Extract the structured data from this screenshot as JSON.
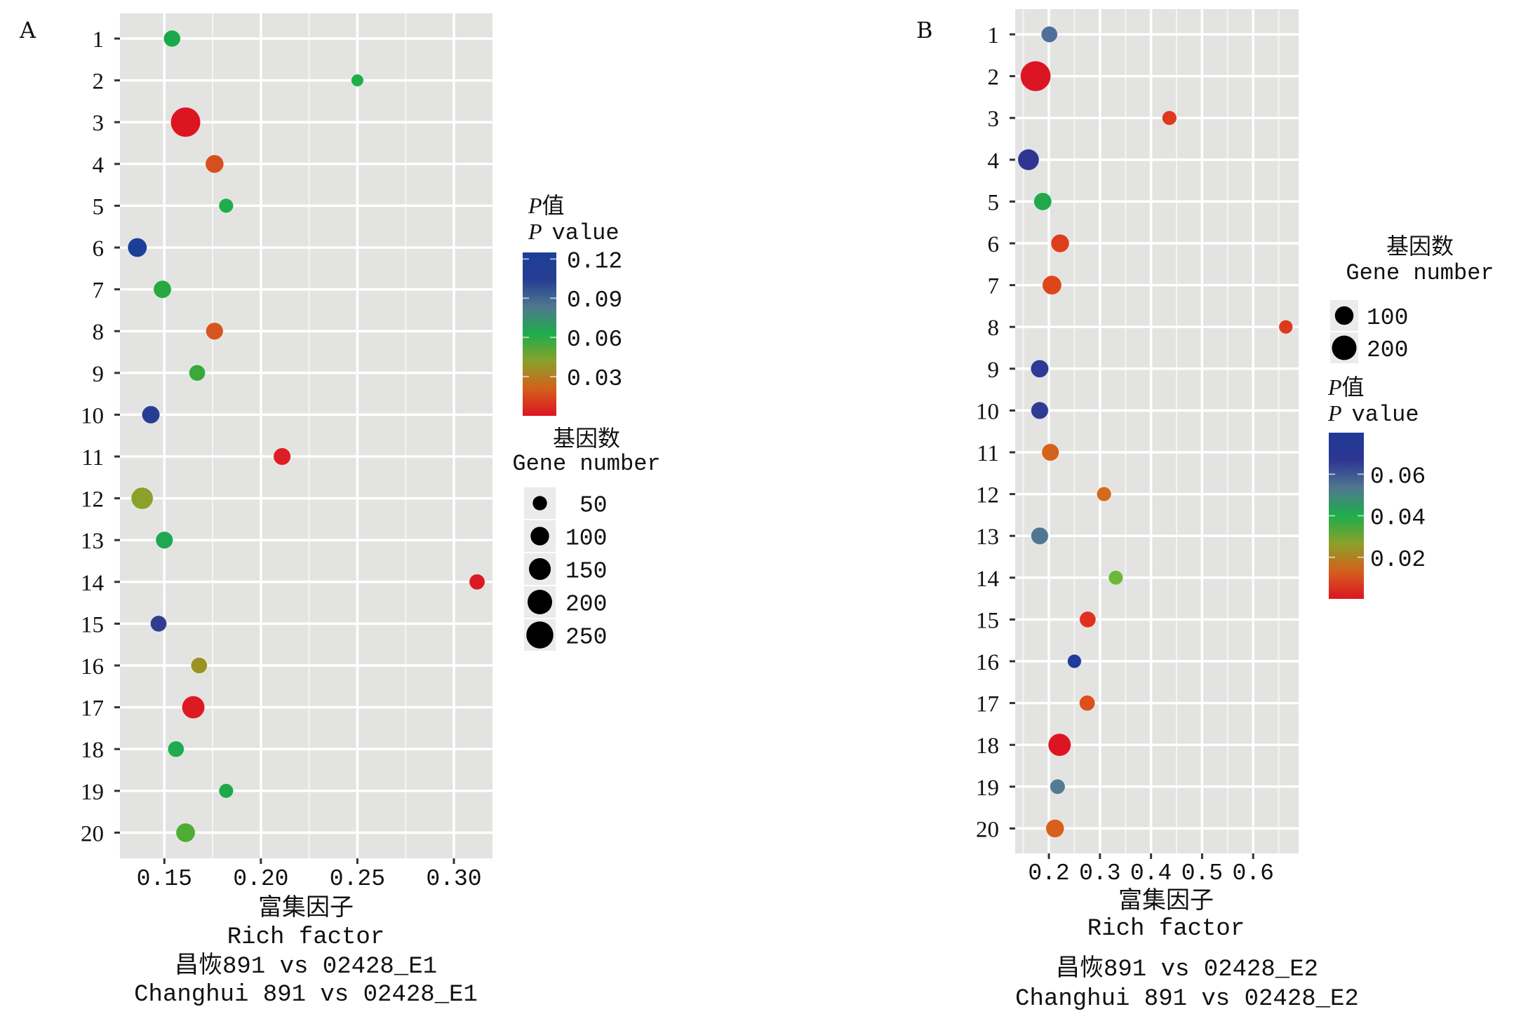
{
  "chart_data": [
    {
      "type": "scatter",
      "panel_label": "A",
      "title": "",
      "xlabel_cn": "富集因子",
      "xlabel": "Rich factor",
      "caption_cn": "昌恢891 vs 02428_E1",
      "caption": "Changhui 891 vs 02428_E1",
      "xlim": [
        0.127,
        0.32
      ],
      "x_ticks": [
        0.15,
        0.2,
        0.25,
        0.3
      ],
      "x_tick_labels": [
        "0.15",
        "0.20",
        "0.25",
        "0.30"
      ],
      "x_minor": [
        0.175,
        0.225,
        0.275
      ],
      "categories": [
        "1",
        "2",
        "3",
        "4",
        "5",
        "6",
        "7",
        "8",
        "9",
        "10",
        "11",
        "12",
        "13",
        "14",
        "15",
        "16",
        "17",
        "18",
        "19",
        "20"
      ],
      "grid": true,
      "points": [
        {
          "term": "1",
          "rich_factor": 0.154,
          "gene_number": 60,
          "color": "#1aa84a"
        },
        {
          "term": "2",
          "rich_factor": 0.25,
          "gene_number": 25,
          "color": "#1fae4a"
        },
        {
          "term": "3",
          "rich_factor": 0.161,
          "gene_number": 250,
          "color": "#dc1522"
        },
        {
          "term": "4",
          "rich_factor": 0.176,
          "gene_number": 75,
          "color": "#d6501e"
        },
        {
          "term": "5",
          "rich_factor": 0.182,
          "gene_number": 40,
          "color": "#1fad4c"
        },
        {
          "term": "6",
          "rich_factor": 0.136,
          "gene_number": 85,
          "color": "#1c3f96"
        },
        {
          "term": "7",
          "rich_factor": 0.149,
          "gene_number": 70,
          "color": "#27a840"
        },
        {
          "term": "8",
          "rich_factor": 0.176,
          "gene_number": 65,
          "color": "#d6541f"
        },
        {
          "term": "9",
          "rich_factor": 0.167,
          "gene_number": 55,
          "color": "#3aa83a"
        },
        {
          "term": "10",
          "rich_factor": 0.143,
          "gene_number": 70,
          "color": "#273d93"
        },
        {
          "term": "11",
          "rich_factor": 0.211,
          "gene_number": 65,
          "color": "#dc1f24"
        },
        {
          "term": "12",
          "rich_factor": 0.1385,
          "gene_number": 120,
          "color": "#8aa12a"
        },
        {
          "term": "13",
          "rich_factor": 0.15,
          "gene_number": 65,
          "color": "#20a850"
        },
        {
          "term": "14",
          "rich_factor": 0.312,
          "gene_number": 50,
          "color": "#dc1a24"
        },
        {
          "term": "15",
          "rich_factor": 0.147,
          "gene_number": 55,
          "color": "#2f3d91"
        },
        {
          "term": "16",
          "rich_factor": 0.168,
          "gene_number": 55,
          "color": "#9a9324"
        },
        {
          "term": "17",
          "rich_factor": 0.165,
          "gene_number": 130,
          "color": "#dc1a22"
        },
        {
          "term": "18",
          "rich_factor": 0.156,
          "gene_number": 55,
          "color": "#22aa50"
        },
        {
          "term": "19",
          "rich_factor": 0.182,
          "gene_number": 40,
          "color": "#1ea84a"
        },
        {
          "term": "20",
          "rich_factor": 0.161,
          "gene_number": 85,
          "color": "#4eac35"
        }
      ],
      "legend_color": {
        "title_cn": "值",
        "title_p": "P",
        "title_en": "value",
        "range": [
          0.0,
          0.125
        ],
        "ticks": [
          0.12,
          0.09,
          0.06,
          0.03
        ],
        "tick_labels": [
          "0.12",
          "0.09",
          "0.06",
          "0.03"
        ],
        "stops": [
          "#dc1522",
          "#d4601c",
          "#8aa12a",
          "#1fad4a",
          "#4f7890",
          "#273d93",
          "#1c3f96"
        ]
      },
      "legend_size": {
        "title_cn": "基因数",
        "title_en": "Gene number",
        "values": [
          50,
          100,
          150,
          200,
          250
        ],
        "labels": [
          "50",
          "100",
          "150",
          "200",
          "250"
        ]
      },
      "legend_placement": "right"
    },
    {
      "type": "scatter",
      "panel_label": "B",
      "title": "",
      "xlabel_cn": "富集因子",
      "xlabel": "Rich factor",
      "caption_cn": "昌恢891 vs 02428_E2",
      "caption": "Changhui 891 vs 02428_E2",
      "xlim": [
        0.134,
        0.689
      ],
      "x_ticks": [
        0.2,
        0.3,
        0.4,
        0.5,
        0.6
      ],
      "x_tick_labels": [
        "0.2",
        "0.3",
        "0.4",
        "0.5",
        "0.6"
      ],
      "x_minor": [
        0.15,
        0.25,
        0.35,
        0.45,
        0.55,
        0.65
      ],
      "categories": [
        "1",
        "2",
        "3",
        "4",
        "5",
        "6",
        "7",
        "8",
        "9",
        "10",
        "11",
        "12",
        "13",
        "14",
        "15",
        "16",
        "17",
        "18",
        "19",
        "20"
      ],
      "grid": true,
      "points": [
        {
          "term": "1",
          "rich_factor": 0.201,
          "gene_number": 55,
          "color": "#4d6f98"
        },
        {
          "term": "2",
          "rich_factor": 0.174,
          "gene_number": 260,
          "color": "#dc1522"
        },
        {
          "term": "3",
          "rich_factor": 0.436,
          "gene_number": 40,
          "color": "#dc3a1c"
        },
        {
          "term": "4",
          "rich_factor": 0.16,
          "gene_number": 110,
          "color": "#2e3592"
        },
        {
          "term": "5",
          "rich_factor": 0.188,
          "gene_number": 70,
          "color": "#22a84a"
        },
        {
          "term": "6",
          "rich_factor": 0.222,
          "gene_number": 75,
          "color": "#dc3e1c"
        },
        {
          "term": "7",
          "rich_factor": 0.206,
          "gene_number": 85,
          "color": "#dd451a"
        },
        {
          "term": "8",
          "rich_factor": 0.664,
          "gene_number": 35,
          "color": "#dc3a1c"
        },
        {
          "term": "9",
          "rich_factor": 0.182,
          "gene_number": 70,
          "color": "#2e3a94"
        },
        {
          "term": "10",
          "rich_factor": 0.182,
          "gene_number": 65,
          "color": "#2e3a94"
        },
        {
          "term": "11",
          "rich_factor": 0.203,
          "gene_number": 65,
          "color": "#d4611c"
        },
        {
          "term": "12",
          "rich_factor": 0.308,
          "gene_number": 40,
          "color": "#d46a1c"
        },
        {
          "term": "13",
          "rich_factor": 0.182,
          "gene_number": 65,
          "color": "#4f7890"
        },
        {
          "term": "14",
          "rich_factor": 0.331,
          "gene_number": 40,
          "color": "#6cb83a"
        },
        {
          "term": "15",
          "rich_factor": 0.276,
          "gene_number": 55,
          "color": "#e03020"
        },
        {
          "term": "16",
          "rich_factor": 0.25,
          "gene_number": 35,
          "color": "#203c98"
        },
        {
          "term": "17",
          "rich_factor": 0.275,
          "gene_number": 50,
          "color": "#dc501e"
        },
        {
          "term": "18",
          "rich_factor": 0.221,
          "gene_number": 130,
          "color": "#dc1522"
        },
        {
          "term": "19",
          "rich_factor": 0.217,
          "gene_number": 45,
          "color": "#557b90"
        },
        {
          "term": "20",
          "rich_factor": 0.212,
          "gene_number": 75,
          "color": "#d7601c"
        }
      ],
      "legend_color": {
        "title_cn": "值",
        "title_p": "P",
        "title_en": "value",
        "range": [
          0.0,
          0.08
        ],
        "ticks": [
          0.06,
          0.04,
          0.02
        ],
        "tick_labels": [
          "0.06",
          "0.04",
          "0.02"
        ],
        "stops": [
          "#dc1522",
          "#d4601c",
          "#8aa12a",
          "#1fad4a",
          "#4f7890",
          "#2e3592",
          "#1f3a96"
        ]
      },
      "legend_size": {
        "title_cn": "基因数",
        "title_en": "Gene number",
        "values": [
          100,
          200
        ],
        "labels": [
          "100",
          "200"
        ]
      },
      "legend_placement": "right"
    }
  ]
}
